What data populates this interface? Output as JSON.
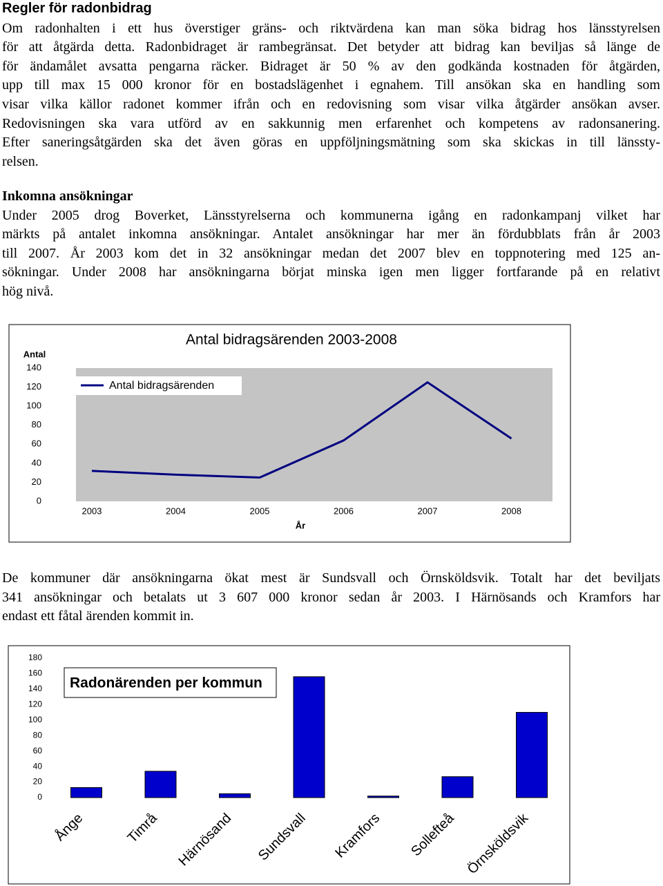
{
  "sections": [
    {
      "heading": "Regler för radonbidrag",
      "lines": [
        "Om radonhalten i ett hus överstiger gräns- och riktvärdena kan man söka bidrag hos länsstyrelsen",
        "för att åtgärda detta. Radonbidraget är rambegränsat. Det betyder att bidrag kan beviljas så länge de",
        "för ändamålet avsatta pengarna räcker. Bidraget är 50 % av den godkända kostnaden för åtgärden,",
        "upp till max 15 000 kronor för en bostadslägenhet i egnahem. Till ansökan ska en handling som",
        "visar vilka källor radonet kommer ifrån och en redovisning som visar vilka åtgärder ansökan avser.",
        "Redovisningen ska vara utförd av en sakkunnig men erfarenhet och kompetens av radonsanering.",
        "Efter saneringsåtgärden ska det även göras en uppföljningsmätning som ska skickas in till länssty-",
        "relsen."
      ]
    },
    {
      "heading": "Inkomna ansökningar",
      "lines": [
        "Under 2005 drog Boverket, Länsstyrelserna och kommunerna igång en radonkampanj vilket har",
        "märkts på antalet inkomna ansökningar. Antalet ansökningar har mer än fördubblats från år 2003",
        "till 2007. År 2003 kom det in 32 ansökningar medan det 2007 blev en toppnotering med 125 an-",
        "sökningar. Under 2008 har ansökningarna börjat minska igen men ligger fortfarande på en relativt",
        "hög nivå."
      ]
    }
  ],
  "closing": {
    "lines": [
      "De kommuner där ansökningarna ökat mest är Sundsvall och Örnsköldsvik. Totalt har det beviljats",
      "341 ansökningar och betalats ut 3 607 000 kronor sedan år 2003. I Härnösands och Kramfors har",
      "endast ett fåtal ärenden kommit in."
    ]
  },
  "chart_data": [
    {
      "type": "line",
      "title": "Antal bidragsärenden 2003-2008",
      "y_label": "Antal",
      "x_label": "År",
      "categories": [
        "2003",
        "2004",
        "2005",
        "2006",
        "2007",
        "2008"
      ],
      "series": [
        {
          "name": "Antal bidragsärenden",
          "color": "#000080",
          "values": [
            32,
            28,
            25,
            64,
            125,
            66
          ]
        }
      ],
      "ylim": [
        0,
        140
      ],
      "yticks": [
        0,
        20,
        40,
        60,
        80,
        100,
        120,
        140
      ]
    },
    {
      "type": "bar",
      "title": "Radonärenden per kommun",
      "categories": [
        "Ånge",
        "Timrå",
        "Härnösand",
        "Sundsvall",
        "Kramfors",
        "Sollefteå",
        "Örnsköldsvik"
      ],
      "values": [
        13,
        34,
        5,
        156,
        2,
        27,
        110
      ],
      "color": "#0000cc",
      "ylim": [
        0,
        180
      ],
      "yticks": [
        0,
        20,
        40,
        60,
        80,
        100,
        120,
        140,
        160,
        180
      ]
    }
  ]
}
